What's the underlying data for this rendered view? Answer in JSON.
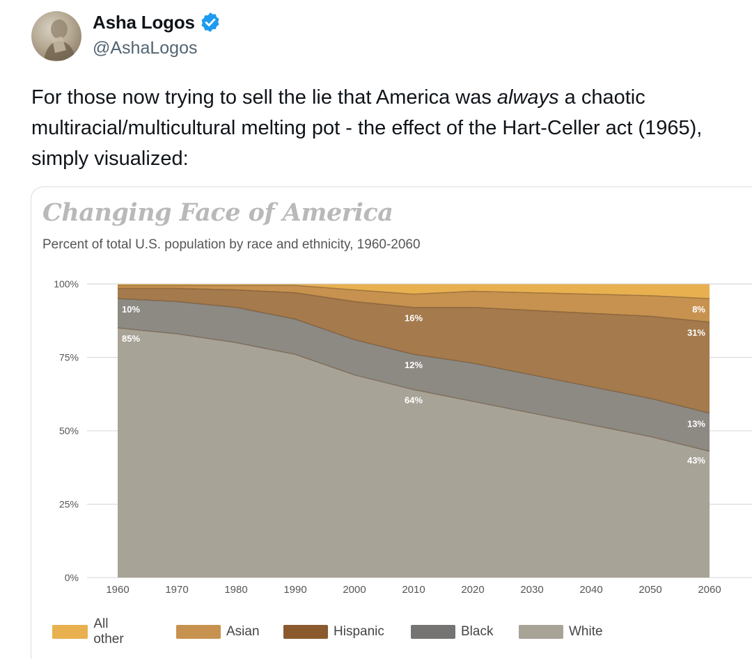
{
  "tweet": {
    "display_name": "Asha Logos",
    "handle": "@AshaLogos",
    "text_before_italic": "For those now trying to sell the lie that America was ",
    "text_italic": "always",
    "text_after_italic": " a chaotic multiracial/multicultural melting pot - the effect of the Hart-Celler act (1965), simply visualized:",
    "verified_icon": "verified-badge-icon",
    "verified_color": "#1d9bf0"
  },
  "chart_data": {
    "type": "area",
    "stacked": true,
    "title": "Changing Face of America",
    "subtitle": "Percent of total U.S. population by race and ethnicity, 1960-2060",
    "x": [
      1960,
      1970,
      1980,
      1990,
      2000,
      2010,
      2020,
      2030,
      2040,
      2050,
      2060
    ],
    "xticks": [
      "1960",
      "1970",
      "1980",
      "1990",
      "2000",
      "2010",
      "2020",
      "2030",
      "2040",
      "2050",
      "2060"
    ],
    "yticks": [
      "0%",
      "25%",
      "50%",
      "75%",
      "100%"
    ],
    "ylim": [
      0,
      100
    ],
    "grid": true,
    "legend_position": "bottom",
    "series": [
      {
        "name": "White",
        "color": "#a8a397",
        "values": [
          85,
          83,
          80,
          76,
          69,
          64,
          60,
          56,
          52,
          48,
          43
        ]
      },
      {
        "name": "Black",
        "color": "#8d8a84",
        "values": [
          10,
          11,
          12,
          12,
          12,
          12,
          13,
          13,
          13,
          13,
          13
        ]
      },
      {
        "name": "Hispanic",
        "color": "#a57a4c",
        "values": [
          3.5,
          4.5,
          6,
          9,
          13,
          16,
          19,
          22,
          25,
          28,
          31
        ]
      },
      {
        "name": "Asian",
        "color": "#c7924f",
        "values": [
          1,
          1,
          1.5,
          2.5,
          4,
          4.5,
          5.5,
          6,
          6.5,
          7,
          8
        ]
      },
      {
        "name": "All other",
        "color": "#e8b04f",
        "values": [
          0.5,
          0.5,
          0.5,
          0.5,
          2,
          3.5,
          2.5,
          3,
          3.5,
          4,
          5
        ]
      }
    ],
    "labels": [
      {
        "text": "10%",
        "x": 1960,
        "y": 91.5
      },
      {
        "text": "85%",
        "x": 1960,
        "y": 81.5
      },
      {
        "text": "16%",
        "x": 2010,
        "y": 88.5
      },
      {
        "text": "12%",
        "x": 2010,
        "y": 72.5
      },
      {
        "text": "64%",
        "x": 2010,
        "y": 60.5
      },
      {
        "text": "8%",
        "x": 2060,
        "y": 91.5
      },
      {
        "text": "31%",
        "x": 2060,
        "y": 83.5
      },
      {
        "text": "13%",
        "x": 2060,
        "y": 52.5
      },
      {
        "text": "43%",
        "x": 2060,
        "y": 40
      }
    ]
  },
  "legend": {
    "items": [
      {
        "label": "All other",
        "color": "#e8b04f"
      },
      {
        "label": "Asian",
        "color": "#c7924f"
      },
      {
        "label": "Hispanic",
        "color": "#8a5a2e"
      },
      {
        "label": "Black",
        "color": "#767473"
      },
      {
        "label": "White",
        "color": "#a8a397"
      }
    ]
  }
}
